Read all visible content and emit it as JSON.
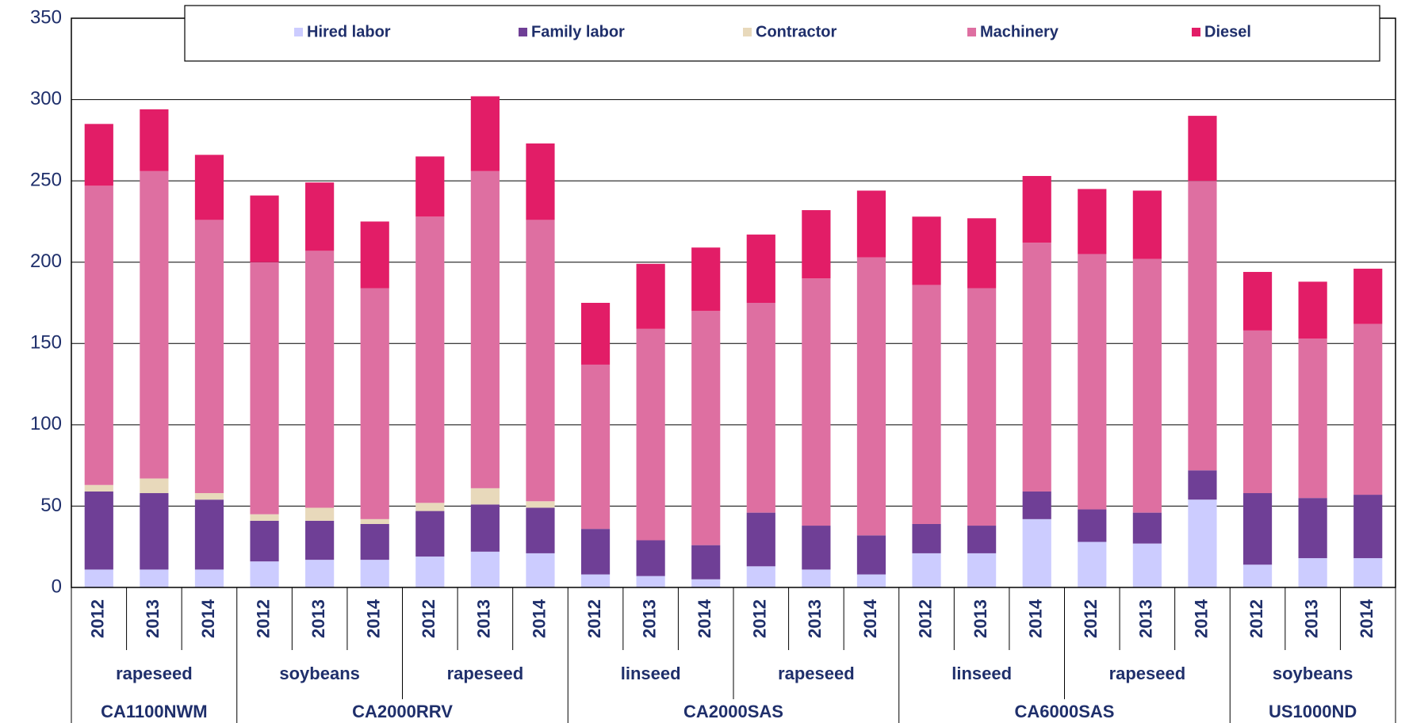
{
  "chart_data": {
    "type": "stacked-bar",
    "ylim": [
      0,
      350
    ],
    "yticks": [
      0,
      50,
      100,
      150,
      200,
      250,
      300,
      350
    ],
    "grid": true,
    "legend": "top",
    "groups": [
      {
        "label": "CA1100NWM",
        "crops": [
          {
            "label": "rapeseed",
            "years": [
              "2012",
              "2013",
              "2014"
            ]
          }
        ]
      },
      {
        "label": "CA2000RRV",
        "crops": [
          {
            "label": "soybeans",
            "years": [
              "2012",
              "2013",
              "2014"
            ]
          },
          {
            "label": "rapeseed",
            "years": [
              "2012",
              "2013",
              "2014"
            ]
          }
        ]
      },
      {
        "label": "CA2000SAS",
        "crops": [
          {
            "label": "linseed",
            "years": [
              "2012",
              "2013",
              "2014"
            ]
          },
          {
            "label": "rapeseed",
            "years": [
              "2012",
              "2013",
              "2014"
            ]
          }
        ]
      },
      {
        "label": "CA6000SAS",
        "crops": [
          {
            "label": "linseed",
            "years": [
              "2012",
              "2013",
              "2014"
            ]
          },
          {
            "label": "rapeseed",
            "years": [
              "2012",
              "2013",
              "2014"
            ]
          }
        ]
      },
      {
        "label": "US1000ND",
        "crops": [
          {
            "label": "soybeans",
            "years": [
              "2012",
              "2013",
              "2014"
            ]
          }
        ]
      }
    ],
    "series": [
      {
        "name": "Hired labor",
        "color": "#ccccff",
        "values": [
          11,
          11,
          11,
          16,
          17,
          17,
          19,
          22,
          21,
          8,
          7,
          5,
          13,
          11,
          8,
          21,
          21,
          42,
          28,
          27,
          54,
          14,
          18,
          18
        ]
      },
      {
        "name": "Family labor",
        "color": "#6f3f96",
        "values": [
          48,
          47,
          43,
          25,
          24,
          22,
          28,
          29,
          28,
          28,
          22,
          21,
          33,
          27,
          24,
          18,
          17,
          17,
          20,
          19,
          18,
          44,
          37,
          39
        ]
      },
      {
        "name": "Contractor",
        "color": "#e8d9bb",
        "values": [
          4,
          9,
          4,
          4,
          8,
          3,
          5,
          10,
          4,
          0,
          0,
          0,
          0,
          0,
          0,
          0,
          0,
          0,
          0,
          0,
          0,
          0,
          0,
          0
        ]
      },
      {
        "name": "Machinery",
        "color": "#de6fa1",
        "values": [
          184,
          189,
          168,
          155,
          158,
          142,
          176,
          195,
          173,
          101,
          130,
          144,
          129,
          152,
          171,
          147,
          146,
          153,
          157,
          156,
          178,
          100,
          98,
          105
        ]
      },
      {
        "name": "Diesel",
        "color": "#e21d67",
        "values": [
          38,
          38,
          40,
          41,
          42,
          41,
          37,
          46,
          47,
          38,
          40,
          39,
          42,
          42,
          41,
          42,
          43,
          41,
          40,
          42,
          40,
          36,
          35,
          34
        ]
      }
    ]
  }
}
